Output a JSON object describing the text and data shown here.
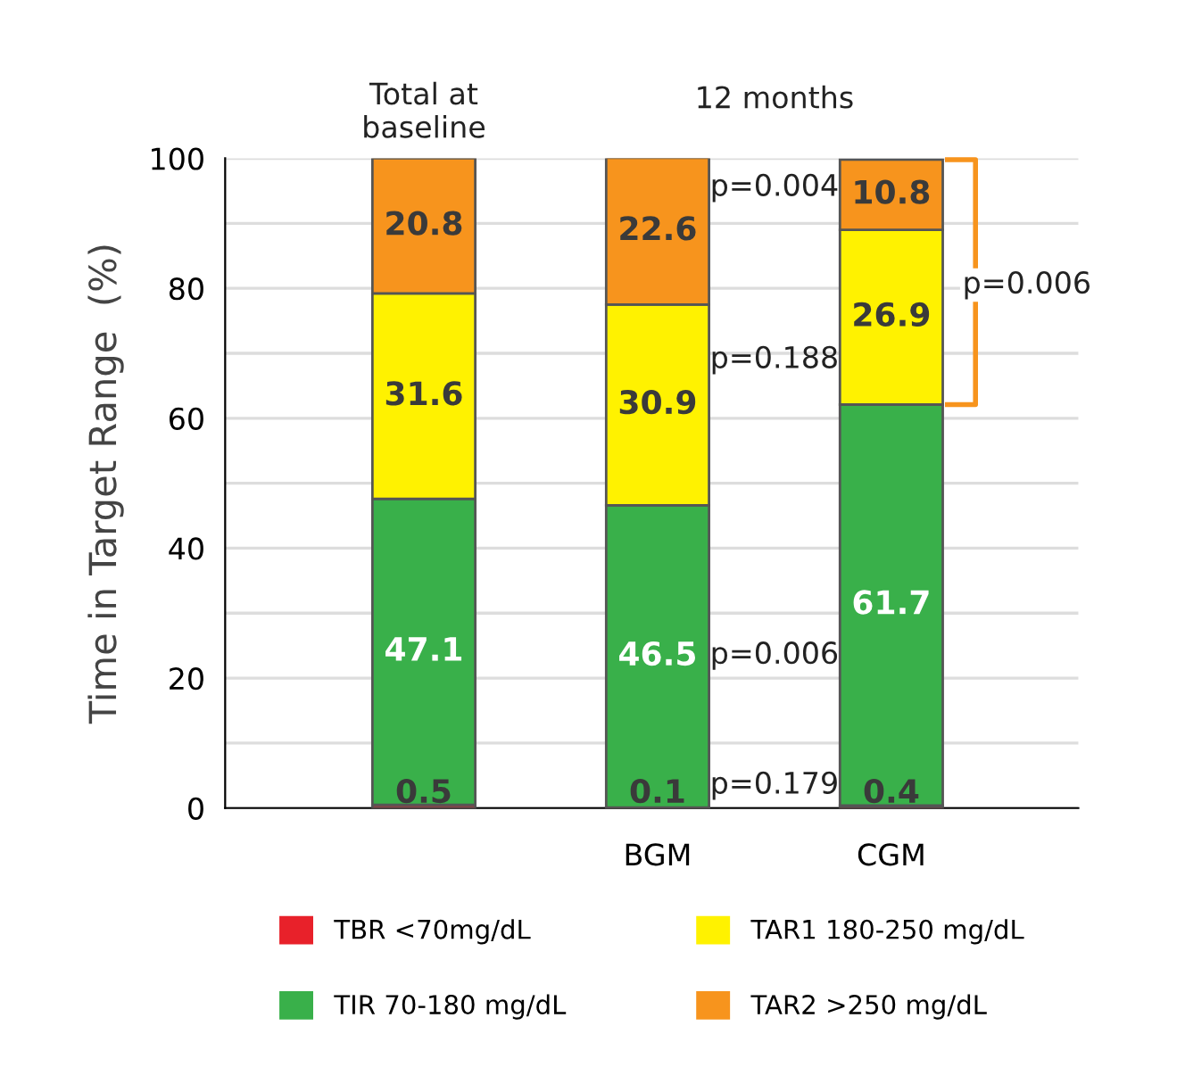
{
  "chart_data": {
    "type": "bar",
    "stacked": true,
    "ylabel": "Time in Target Range  (%)",
    "categories": [
      null,
      "BGM",
      "CGM"
    ],
    "series": [
      {
        "name": "TBR <70mg/dL",
        "color": "#e8212a",
        "values": [
          0.5,
          0.1,
          0.4
        ]
      },
      {
        "name": "TIR 70-180 mg/dL",
        "color": "#39b04a",
        "values": [
          47.1,
          46.5,
          61.7
        ]
      },
      {
        "name": "TAR1 180-250 mg/dL",
        "color": "#fff200",
        "values": [
          31.6,
          30.9,
          26.9
        ]
      },
      {
        "name": "TAR2 >250 mg/dL",
        "color": "#f7941d",
        "values": [
          20.8,
          22.6,
          10.8
        ]
      }
    ],
    "ylim": [
      0,
      100
    ],
    "yticks": [
      0,
      {
        "value": 10,
        "label": null
      },
      20,
      {
        "value": 30,
        "label": null
      },
      40,
      {
        "value": 50,
        "label": null
      },
      60,
      {
        "value": 70,
        "label": null
      },
      80,
      {
        "value": 90,
        "label": null
      },
      100
    ],
    "grid": "y",
    "legend": "bottom",
    "data_labels": true,
    "annotations": [
      "Total at\nbaseline",
      "12 months",
      "p=0.004",
      "p=0.188",
      "p=0.006",
      "p=0.179",
      "p=0.006"
    ]
  }
}
